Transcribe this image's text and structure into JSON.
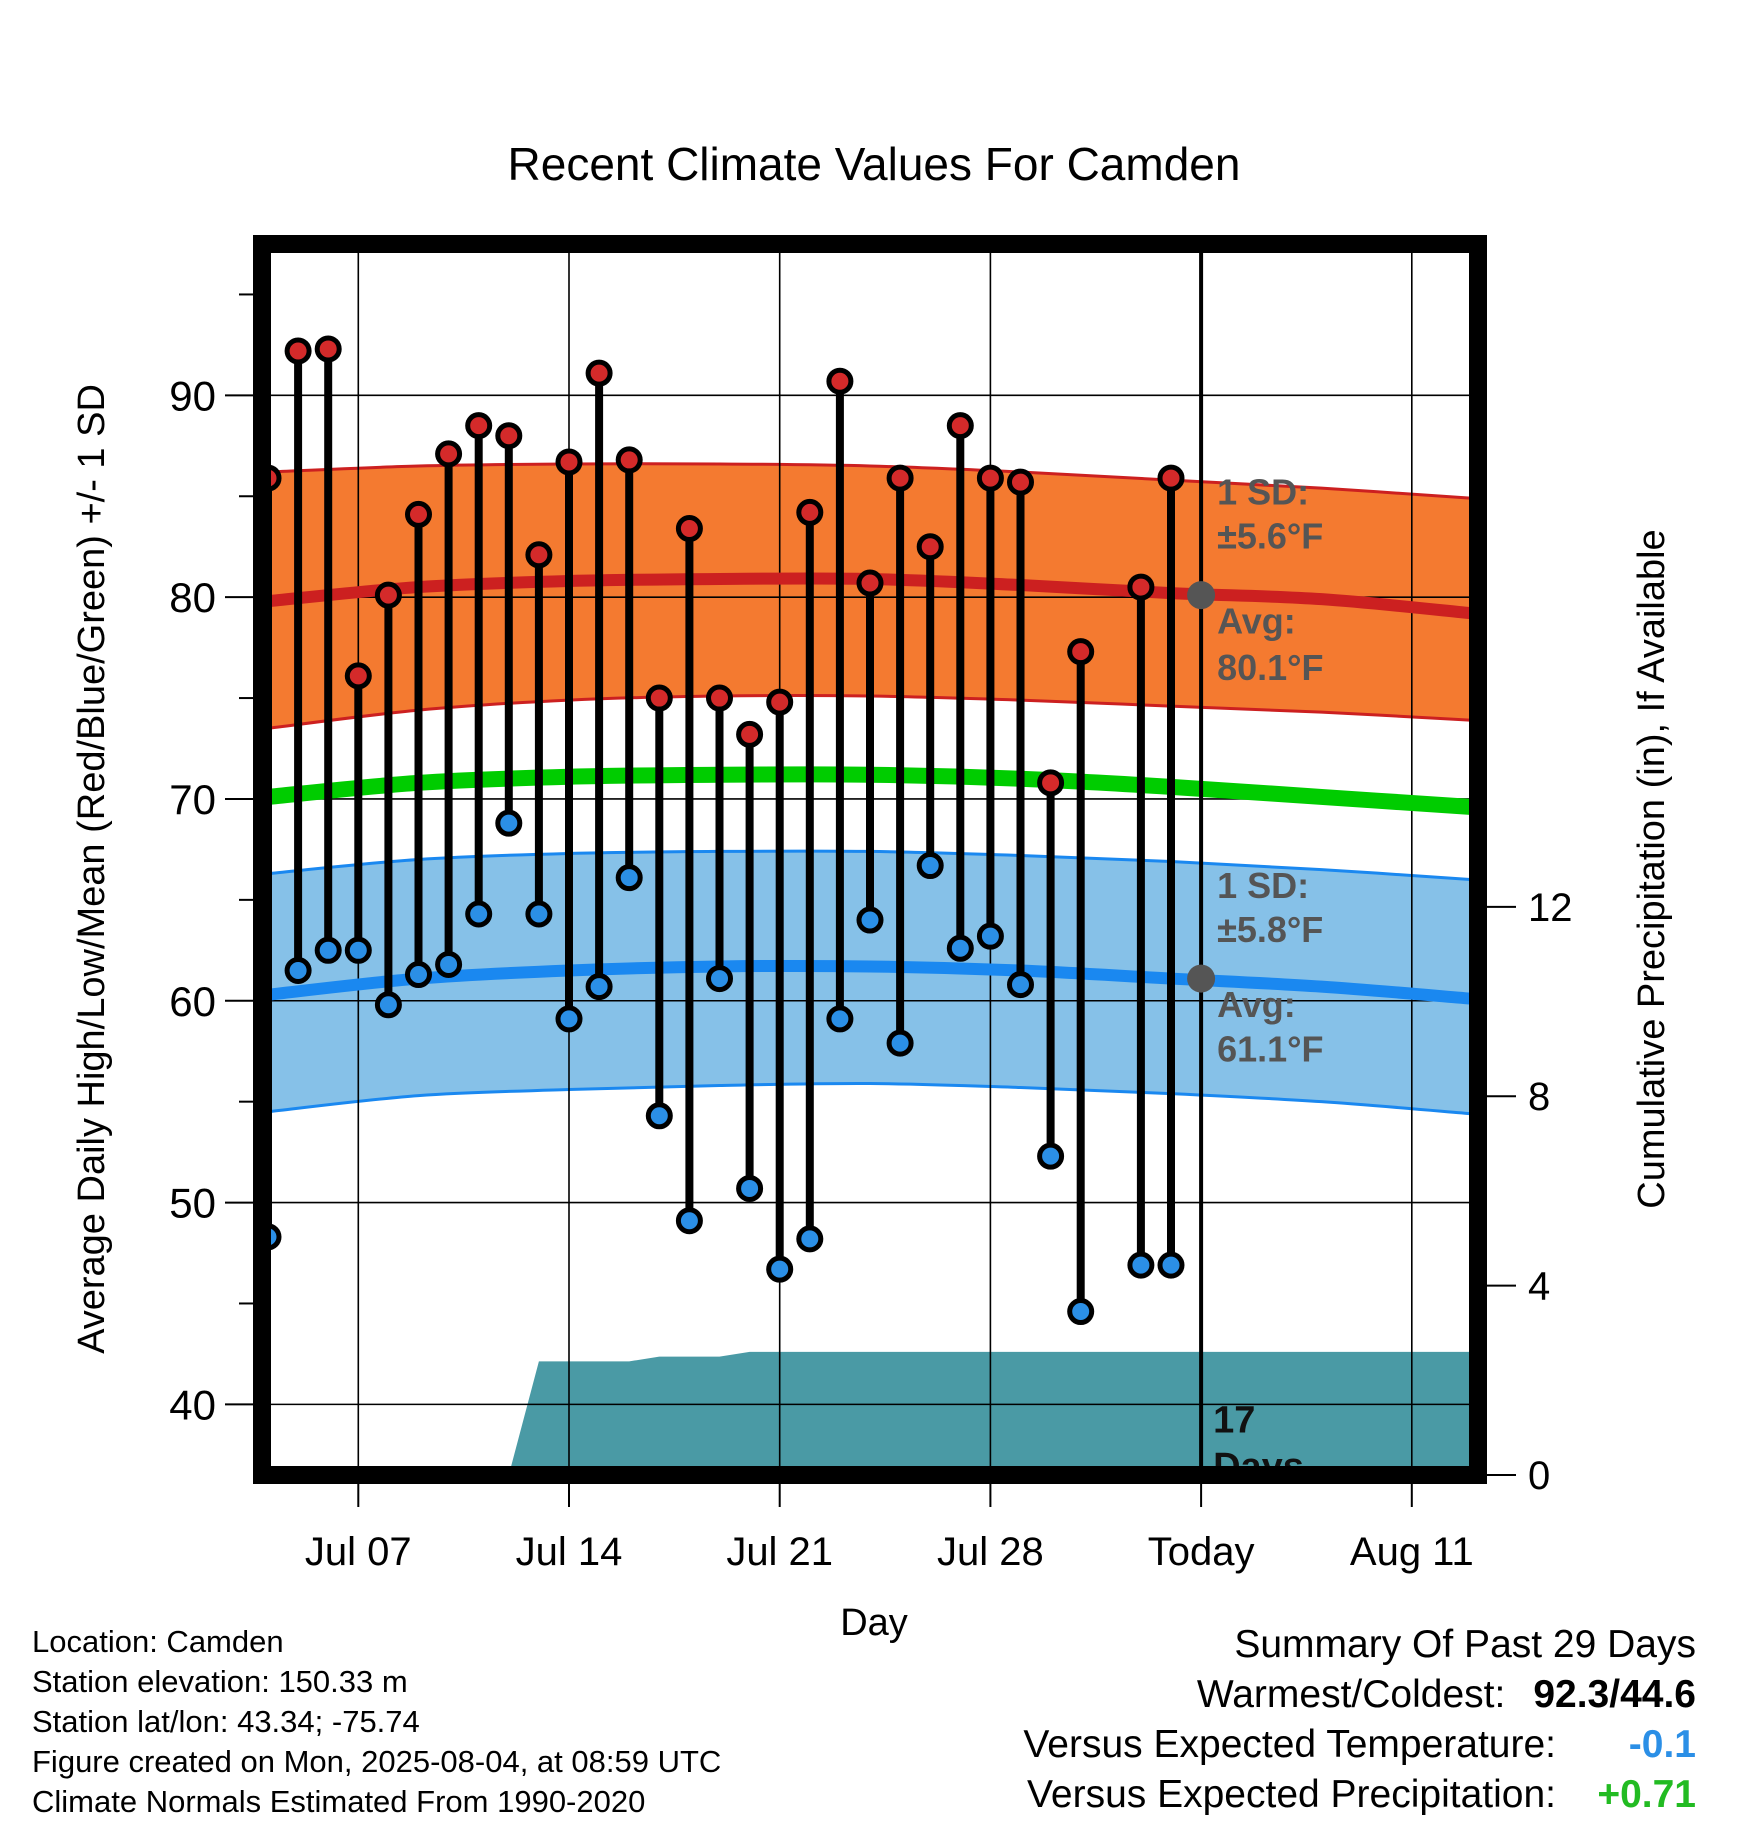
{
  "chart_data": {
    "type": "line",
    "title": "Recent Climate Values For Camden",
    "xlabel": "Day",
    "ylabel": "Average Daily High/Low/Mean (Red/Blue/Green) +/- 1 SD",
    "y2label": "Cumulative Precipitation (in), If Available",
    "ylim": [
      36.5,
      97.5
    ],
    "y2lim": [
      0,
      26
    ],
    "y_ticks": [
      40,
      50,
      60,
      70,
      80,
      90
    ],
    "y2_ticks": [
      0,
      4,
      8,
      12
    ],
    "x_dates": [
      "Jul 04",
      "Jul 05",
      "Jul 06",
      "Jul 07",
      "Jul 08",
      "Jul 09",
      "Jul 10",
      "Jul 11",
      "Jul 12",
      "Jul 13",
      "Jul 14",
      "Jul 15",
      "Jul 16",
      "Jul 17",
      "Jul 18",
      "Jul 19",
      "Jul 20",
      "Jul 21",
      "Jul 22",
      "Jul 23",
      "Jul 24",
      "Jul 25",
      "Jul 26",
      "Jul 27",
      "Jul 28",
      "Jul 29",
      "Jul 30",
      "Jul 31",
      "Aug 01",
      "Aug 02",
      "Aug 03",
      "Aug 04",
      "Aug 05",
      "Aug 06",
      "Aug 07",
      "Aug 08",
      "Aug 09",
      "Aug 10",
      "Aug 11",
      "Aug 12",
      "Aug 13"
    ],
    "x_tick_labels": [
      {
        "date": "Jul 07",
        "label": "Jul 07"
      },
      {
        "date": "Jul 14",
        "label": "Jul 14"
      },
      {
        "date": "Jul 21",
        "label": "Jul 21"
      },
      {
        "date": "Jul 28",
        "label": "Jul 28"
      },
      {
        "date": "Aug 04",
        "label": "Today"
      },
      {
        "date": "Aug 11",
        "label": "Aug 11"
      }
    ],
    "today": "Aug 04",
    "grid": true,
    "series": [
      {
        "name": "High",
        "color": "#d42a2a",
        "dates": [
          "Jul 04",
          "Jul 05",
          "Jul 06",
          "Jul 07",
          "Jul 08",
          "Jul 09",
          "Jul 10",
          "Jul 11",
          "Jul 12",
          "Jul 13",
          "Jul 14",
          "Jul 15",
          "Jul 16",
          "Jul 17",
          "Jul 18",
          "Jul 19",
          "Jul 20",
          "Jul 21",
          "Jul 22",
          "Jul 23",
          "Jul 24",
          "Jul 25",
          "Jul 26",
          "Jul 27",
          "Jul 28",
          "Jul 29",
          "Jul 30",
          "Jul 31",
          "Aug 02",
          "Aug 03"
        ],
        "values": [
          85.9,
          92.2,
          92.3,
          76.1,
          80.1,
          84.1,
          87.1,
          88.5,
          88.0,
          82.1,
          86.7,
          91.1,
          86.8,
          75.0,
          83.4,
          75.0,
          73.2,
          74.8,
          84.2,
          90.7,
          80.7,
          85.9,
          82.5,
          88.5,
          85.9,
          85.7,
          70.8,
          77.3,
          80.5,
          85.9
        ]
      },
      {
        "name": "Low",
        "color": "#2b8fe6",
        "dates": [
          "Jul 04",
          "Jul 05",
          "Jul 06",
          "Jul 07",
          "Jul 08",
          "Jul 09",
          "Jul 10",
          "Jul 11",
          "Jul 12",
          "Jul 13",
          "Jul 14",
          "Jul 15",
          "Jul 16",
          "Jul 17",
          "Jul 18",
          "Jul 19",
          "Jul 20",
          "Jul 21",
          "Jul 22",
          "Jul 23",
          "Jul 24",
          "Jul 25",
          "Jul 26",
          "Jul 27",
          "Jul 28",
          "Jul 29",
          "Jul 30",
          "Jul 31",
          "Aug 02",
          "Aug 03"
        ],
        "values": [
          48.3,
          61.5,
          62.5,
          62.5,
          59.8,
          61.3,
          61.8,
          64.3,
          68.8,
          64.3,
          59.1,
          60.7,
          66.1,
          54.3,
          49.1,
          61.1,
          50.7,
          46.7,
          48.2,
          59.1,
          64.0,
          57.9,
          66.7,
          62.6,
          63.2,
          60.8,
          52.3,
          44.6,
          46.9,
          46.9
        ]
      }
    ],
    "normals": {
      "high_avg": [
        79.8,
        80.5,
        80.8,
        80.9,
        80.9,
        80.6,
        80.2,
        79.9,
        79.2
      ],
      "high_upper": [
        86.2,
        86.5,
        86.6,
        86.6,
        86.5,
        86.2,
        85.8,
        85.4,
        84.9
      ],
      "high_lower": [
        73.5,
        74.4,
        74.9,
        75.1,
        75.1,
        74.9,
        74.6,
        74.3,
        73.9
      ],
      "mean_avg": [
        70.1,
        70.8,
        71.1,
        71.2,
        71.2,
        71.0,
        70.6,
        70.1,
        69.6
      ],
      "low_avg": [
        60.3,
        61.1,
        61.5,
        61.7,
        61.7,
        61.5,
        61.1,
        60.7,
        60.1
      ],
      "low_upper": [
        66.3,
        67.0,
        67.3,
        67.4,
        67.4,
        67.2,
        66.9,
        66.5,
        66.0
      ],
      "low_lower": [
        54.5,
        55.3,
        55.6,
        55.8,
        55.9,
        55.7,
        55.4,
        55.0,
        54.4
      ],
      "dates": [
        "Jul 04",
        "Jul 09",
        "Jul 14",
        "Jul 19",
        "Jul 24",
        "Jul 29",
        "Aug 03",
        "Aug 08",
        "Aug 13"
      ],
      "colors": {
        "high_band": "#f47a30",
        "high_line": "#cc2020",
        "low_band": "#86c1e8",
        "low_line": "#1a88f0",
        "mean_line": "#00cc00",
        "precip": "#4a9aa5"
      }
    },
    "precip": {
      "dates": [
        "Jul 12",
        "Jul 13",
        "Jul 14",
        "Jul 15",
        "Jul 16",
        "Jul 17",
        "Jul 18",
        "Jul 19",
        "Jul 20",
        "Aug 04",
        "Aug 13"
      ],
      "values": [
        0,
        2.4,
        2.4,
        2.4,
        2.4,
        2.5,
        2.5,
        2.5,
        2.6,
        2.6,
        2.6
      ]
    },
    "annotations": {
      "high_sd_label": "1 SD:",
      "high_sd_value": "±5.6°F",
      "high_avg_label": "Avg:",
      "high_avg_value": "80.1°F",
      "high_today_avg": 80.1,
      "low_sd_label": "1 SD:",
      "low_sd_value": "±5.8°F",
      "low_avg_label": "Avg:",
      "low_avg_value": "61.1°F",
      "low_today_avg": 61.1,
      "days_count": "17",
      "days_label": "Days"
    }
  },
  "footer": {
    "location": "Location: Camden",
    "elevation": "Station elevation: 150.33 m",
    "latlon": "Station lat/lon: 43.34; -75.74",
    "created": "Figure created on Mon, 2025-08-04, at 08:59 UTC",
    "normals": "Climate Normals Estimated From 1990-2020"
  },
  "summary": {
    "title": "Summary Of Past 29 Days",
    "warm_cold_label": "Warmest/Coldest:",
    "warm_cold_value": "92.3/44.6",
    "temp_label": "Versus Expected Temperature:",
    "temp_value": "-0.1",
    "temp_color": "#2b8fe6",
    "precip_label": "Versus Expected Precipitation:",
    "precip_value": "+0.71",
    "precip_color": "#22bb22"
  }
}
